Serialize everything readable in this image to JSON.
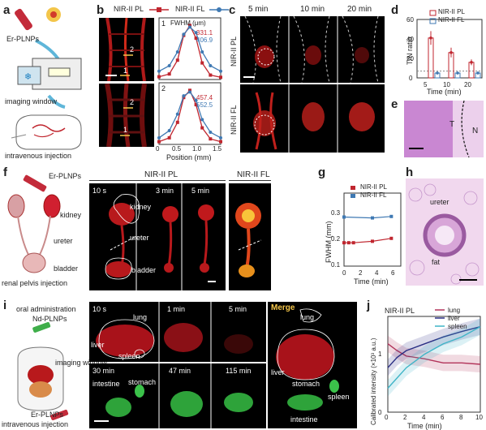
{
  "panels": {
    "a": {
      "label": "a",
      "er_plnps": "Er-PLNPs",
      "imaging_window": "imaging window",
      "injection": "intravenous injection"
    },
    "b": {
      "label": "b",
      "legend_pl": "NIR-II PL",
      "legend_fl": "NIR-II FL",
      "fwhm_title": "FWHM (μm)",
      "plot1": {
        "index": "1",
        "val_pl": "331.1",
        "val_fl": "406.9"
      },
      "plot2": {
        "index": "2",
        "val_pl": "457.4",
        "val_fl": "552.5"
      },
      "img_top_marks": [
        "1",
        "2"
      ],
      "img_bottom_marks": [
        "1",
        "2"
      ],
      "xlabel": "Position (mm)",
      "xticks": [
        "0",
        "0.5",
        "1.0",
        "1.5"
      ]
    },
    "c": {
      "label": "c",
      "times": [
        "5 min",
        "10 min",
        "20 min"
      ],
      "row_pl": "NIR-II PL",
      "row_fl": "NIR-II FL"
    },
    "d": {
      "label": "d",
      "legend_pl": "NIR-II PL",
      "legend_fl": "NIR-II FL",
      "ylabel": "T/N ratio",
      "xlabel": "Time (min)",
      "yticks": [
        "0",
        "20",
        "40",
        "60"
      ],
      "xticks": [
        "5",
        "10",
        "20"
      ]
    },
    "e": {
      "label": "e",
      "t": "T",
      "n": "N"
    },
    "f": {
      "label": "f",
      "er_plnps": "Er-PLNPs",
      "kidney": "kidney",
      "ureter": "ureter",
      "bladder": "bladder",
      "injection": "renal pelvis injection",
      "header_pl": "NIR-II PL",
      "header_fl": "NIR-II FL",
      "times": [
        "10 s",
        "3 min",
        "5 min"
      ],
      "img_kidney": "kidney",
      "img_ureter": "ureter",
      "img_bladder": "bladder"
    },
    "g": {
      "label": "g",
      "legend_pl": "NIR-II PL",
      "legend_fl": "NIR-II FL",
      "ylabel": "FWHM (mm)",
      "xlabel": "Time (min)",
      "yticks": [
        "0.1",
        "0.2",
        "0.3"
      ],
      "xticks": [
        "0",
        "2",
        "4",
        "6"
      ]
    },
    "h": {
      "label": "h",
      "ureter": "ureter",
      "fat": "fat"
    },
    "i": {
      "label": "i",
      "oral": "oral administration",
      "nd_plnps": "Nd-PLNPs",
      "imaging_window": "imaging window",
      "er_plnps": "Er-PLNPs",
      "injection": "intravenous injection",
      "top_times": [
        "10 s",
        "1 min",
        "5 min"
      ],
      "bottom_times": [
        "30 min",
        "47 min",
        "115 min"
      ],
      "lung": "lung",
      "liver": "liver",
      "spleen": "spleen",
      "intestine": "intestine",
      "stomach": "stomach",
      "merge": "Merge",
      "m_lung": "lung",
      "m_liver": "liver",
      "m_stomach": "stomach",
      "m_spleen": "spleen",
      "m_intestine": "intestine"
    },
    "j": {
      "label": "j",
      "title": "NIR-II PL",
      "legend": [
        "lung",
        "liver",
        "spleen"
      ],
      "ylabel": "Calibrated intensity (×10³ a.u.)",
      "xlabel": "Time (min)",
      "yticks": [
        "0",
        "1"
      ],
      "xticks": [
        "0",
        "2",
        "4",
        "6",
        "8",
        "10"
      ]
    }
  },
  "colors": {
    "pl": "#c0262f",
    "fl": "#3f79b3",
    "lung": "#b2345a",
    "liver": "#2a2f84",
    "spleen": "#3fb4c7"
  },
  "chart_data": [
    {
      "type": "line",
      "title": "1",
      "xlabel": "Position (mm)",
      "ylim": [
        0,
        1
      ],
      "xlim": [
        0,
        1.5
      ],
      "series": [
        {
          "name": "NIR-II PL",
          "x": [
            0.0,
            0.25,
            0.45,
            0.6,
            0.75,
            0.9,
            1.05,
            1.25,
            1.5
          ],
          "values": [
            0.05,
            0.1,
            0.35,
            0.8,
            0.98,
            0.75,
            0.3,
            0.08,
            0.04
          ]
        },
        {
          "name": "NIR-II FL",
          "x": [
            0.0,
            0.25,
            0.45,
            0.6,
            0.75,
            0.9,
            1.05,
            1.25,
            1.5
          ],
          "values": [
            0.15,
            0.25,
            0.5,
            0.82,
            0.95,
            0.85,
            0.5,
            0.25,
            0.15
          ]
        }
      ]
    },
    {
      "type": "line",
      "title": "2",
      "xlabel": "Position (mm)",
      "ylim": [
        0,
        1
      ],
      "xlim": [
        0,
        1.5
      ],
      "series": [
        {
          "name": "NIR-II PL",
          "x": [
            0.0,
            0.25,
            0.45,
            0.6,
            0.75,
            0.9,
            1.05,
            1.25,
            1.5
          ],
          "values": [
            0.05,
            0.12,
            0.4,
            0.85,
            0.98,
            0.72,
            0.3,
            0.1,
            0.05
          ]
        },
        {
          "name": "NIR-II FL",
          "x": [
            0.0,
            0.25,
            0.45,
            0.6,
            0.75,
            0.9,
            1.05,
            1.25,
            1.5
          ],
          "values": [
            0.12,
            0.25,
            0.55,
            0.88,
            0.95,
            0.8,
            0.45,
            0.22,
            0.12
          ]
        }
      ]
    },
    {
      "type": "bar",
      "ylabel": "T/N ratio",
      "xlabel": "Time (min)",
      "categories": [
        "5",
        "10",
        "20"
      ],
      "ylim": [
        0,
        60
      ],
      "series": [
        {
          "name": "NIR-II PL",
          "values": [
            41,
            26,
            16
          ],
          "errors": [
            7,
            5,
            3
          ]
        },
        {
          "name": "NIR-II FL",
          "values": [
            5,
            5,
            5
          ],
          "errors": [
            1.5,
            1.5,
            1.5
          ]
        }
      ]
    },
    {
      "type": "line",
      "ylabel": "FWHM (mm)",
      "xlabel": "Time (min)",
      "xlim": [
        0,
        6
      ],
      "ylim": [
        0.1,
        0.35
      ],
      "series": [
        {
          "name": "NIR-II PL",
          "x": [
            0,
            0.5,
            1,
            3,
            5
          ],
          "values": [
            0.18,
            0.18,
            0.18,
            0.185,
            0.195
          ]
        },
        {
          "name": "NIR-II FL",
          "x": [
            0,
            3,
            5
          ],
          "values": [
            0.268,
            0.265,
            0.27
          ]
        }
      ]
    },
    {
      "type": "line",
      "title": "NIR-II PL",
      "ylabel": "Calibrated intensity (×10³ a.u.)",
      "xlabel": "Time (min)",
      "xlim": [
        0,
        10
      ],
      "ylim": [
        0,
        1.4
      ],
      "series": [
        {
          "name": "lung",
          "x": [
            0,
            1,
            2,
            4,
            6,
            8,
            10
          ],
          "values": [
            1.0,
            0.9,
            0.82,
            0.78,
            0.72,
            0.72,
            0.7
          ]
        },
        {
          "name": "liver",
          "x": [
            0,
            1,
            2,
            4,
            6,
            8,
            10
          ],
          "values": [
            0.65,
            0.8,
            0.9,
            1.0,
            1.1,
            1.18,
            1.25
          ]
        },
        {
          "name": "spleen",
          "x": [
            0,
            1,
            2,
            4,
            6,
            8,
            10
          ],
          "values": [
            0.35,
            0.5,
            0.65,
            0.85,
            1.0,
            1.1,
            1.25
          ]
        }
      ]
    }
  ]
}
